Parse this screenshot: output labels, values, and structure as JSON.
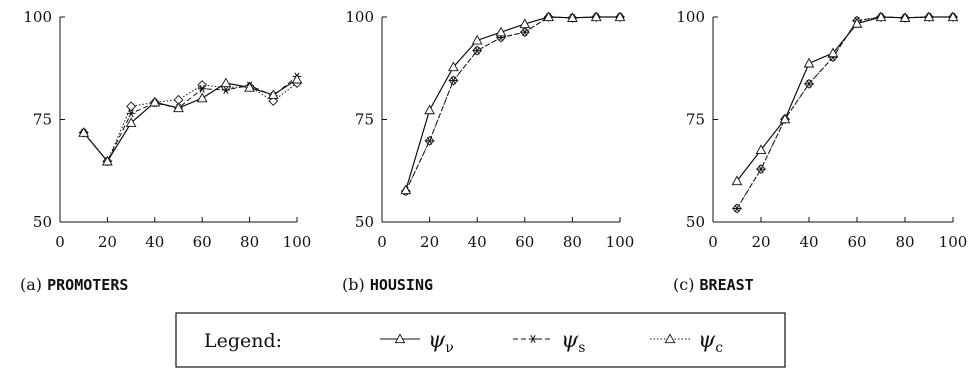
{
  "chart_data": [
    {
      "type": "line",
      "caption_prefix": "(a)",
      "caption_name": "PROMOTERS",
      "xlim": [
        0,
        100
      ],
      "ylim": [
        50,
        100
      ],
      "x_ticks": [
        0,
        20,
        40,
        60,
        80,
        100
      ],
      "y_ticks": [
        50,
        75,
        100
      ],
      "grid": false,
      "x": [
        10,
        20,
        30,
        40,
        50,
        60,
        70,
        80,
        90,
        100
      ],
      "series": [
        {
          "key": "nu",
          "values": [
            71.8,
            64.8,
            74.2,
            79.2,
            77.8,
            80.2,
            83.9,
            82.8,
            81.0,
            84.8
          ]
        },
        {
          "key": "s",
          "values": [
            71.8,
            64.8,
            76.5,
            79.0,
            77.8,
            82.5,
            82.2,
            83.3,
            80.8,
            85.5
          ]
        },
        {
          "key": "c",
          "values": [
            71.8,
            64.8,
            78.2,
            79.2,
            79.8,
            83.4,
            82.8,
            83.0,
            79.5,
            83.9
          ]
        }
      ]
    },
    {
      "type": "line",
      "caption_prefix": "(b)",
      "caption_name": "HOUSING",
      "xlim": [
        0,
        100
      ],
      "ylim": [
        50,
        100
      ],
      "x_ticks": [
        0,
        20,
        40,
        60,
        80,
        100
      ],
      "y_ticks": [
        50,
        75,
        100
      ],
      "grid": false,
      "x": [
        10,
        20,
        30,
        40,
        50,
        60,
        70,
        80,
        90,
        100
      ],
      "series": [
        {
          "key": "nu",
          "values": [
            57.8,
            77.3,
            87.8,
            94.3,
            96.3,
            98.3,
            100,
            99.8,
            100,
            100
          ]
        },
        {
          "key": "s",
          "values": [
            57.5,
            69.8,
            84.5,
            91.8,
            95.0,
            96.3,
            100,
            99.8,
            100,
            100
          ]
        },
        {
          "key": "c",
          "values": [
            57.5,
            69.8,
            84.5,
            91.8,
            95.0,
            96.3,
            100,
            99.8,
            100,
            100
          ]
        }
      ]
    },
    {
      "type": "line",
      "caption_prefix": "(c)",
      "caption_name": "BREAST",
      "xlim": [
        0,
        100
      ],
      "ylim": [
        50,
        100
      ],
      "x_ticks": [
        0,
        20,
        40,
        60,
        80,
        100
      ],
      "y_ticks": [
        50,
        75,
        100
      ],
      "grid": false,
      "x": [
        10,
        20,
        30,
        40,
        50,
        60,
        70,
        80,
        90,
        100
      ],
      "series": [
        {
          "key": "nu",
          "values": [
            60.0,
            67.6,
            75.1,
            88.7,
            91.2,
            98.4,
            100,
            99.8,
            100,
            100
          ]
        },
        {
          "key": "s",
          "values": [
            53.3,
            62.9,
            75.1,
            83.7,
            90.2,
            99.1,
            100,
            99.8,
            100,
            100
          ]
        },
        {
          "key": "c",
          "values": [
            53.3,
            62.9,
            75.1,
            83.7,
            90.2,
            99.1,
            100,
            99.8,
            100,
            100
          ]
        }
      ]
    }
  ],
  "legend": {
    "title": "Legend:",
    "entries": [
      {
        "key": "nu",
        "symbol": "ψ",
        "subscript": "ν",
        "line_style": "solid",
        "marker": "triangle"
      },
      {
        "key": "s",
        "symbol": "ψ",
        "subscript": "s",
        "line_style": "dashed",
        "marker": "asterisk"
      },
      {
        "key": "c",
        "symbol": "ψ",
        "subscript": "c",
        "line_style": "dotted",
        "marker": "triangle"
      }
    ]
  }
}
